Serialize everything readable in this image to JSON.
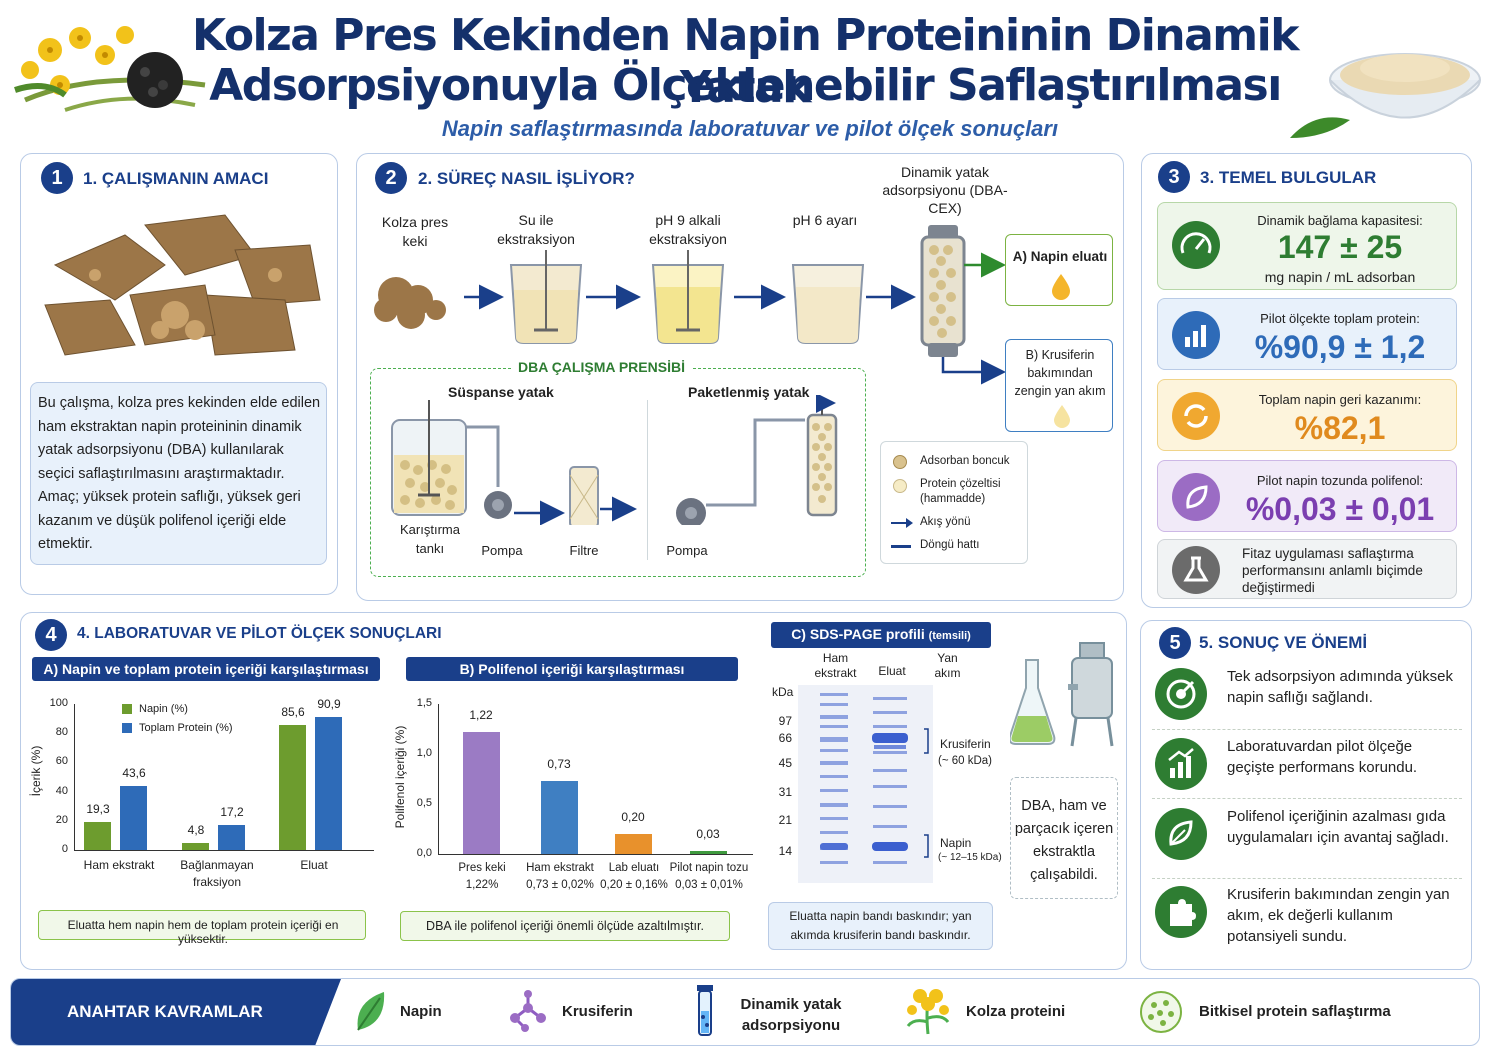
{
  "header": {
    "title_line1": "Kolza Pres Kekinden Napin Proteininin Dinamik Yatak",
    "title_line2": "Adsorpsiyonuyla Ölçeklenebilir Saflaştırılması",
    "subtitle": "Napin saflaştırmasında laboratuvar ve pilot ölçek sonuçları"
  },
  "s1": {
    "num": "1",
    "title": "1. ÇALIŞMANIN AMACI",
    "body": "Bu çalışma, kolza pres kekinden elde edilen ham ekstraktan napin proteininin dinamik yatak adsorpsiyonu (DBA) kullanılarak seçici saflaştırılmasını araştırmaktadır. Amaç; yüksek protein saflığı, yüksek geri kazanım ve düşük polifenol içeriği elde etmektir."
  },
  "s2": {
    "num": "2",
    "title": "2. SÜREÇ NASIL İŞLİYOR?",
    "steps": [
      "Kolza pres keki",
      "Su ile ekstraksiyon",
      "pH 9 alkali ekstraksiyon",
      "pH 6 ayarı"
    ],
    "column_label": "Dinamik yatak adsorpsiyonu (DBA-CEX)",
    "out_a": "A) Napin eluatı",
    "out_b": "B) Krusiferin bakımından zengin yan akım",
    "principle_title": "DBA ÇALIŞMA PRENSİBİ",
    "suspended": "Süspanse yatak",
    "packed": "Paketlenmiş yatak",
    "tank": "Karıştırma tankı",
    "pump1": "Pompa",
    "filter": "Filtre",
    "pump2": "Pompa",
    "legend": [
      "Adsorban boncuk",
      "Protein çözeltisi (hammadde)",
      "Akış yönü",
      "Döngü hattı"
    ]
  },
  "s3": {
    "num": "3",
    "title": "3. TEMEL BULGULAR",
    "f1_top": "Dinamik bağlama kapasitesi:",
    "f1_big": "147 ± 25",
    "f1_unit": "mg napin / mL adsorban",
    "f2_top": "Pilot ölçekte toplam protein:",
    "f2_big": "%90,9 ± 1,2",
    "f3_top": "Toplam napin geri kazanımı:",
    "f3_big": "%82,1",
    "f4_top": "Pilot napin tozunda polifenol:",
    "f4_big": "%0,03 ± 0,01",
    "f5_text": "Fitaz uygulaması saflaştırma performansını anlamlı biçimde değiştirmedi"
  },
  "s4": {
    "num": "4",
    "title": "4. LABORATUVAR VE PİLOT ÖLÇEK SONUÇLARI",
    "a_title": "A) Napin ve toplam protein içeriği karşılaştırması",
    "a_note": "Eluatta hem napin hem de toplam protein içeriği en yüksektir.",
    "b_title": "B) Polifenol içeriği karşılaştırması",
    "b_note": "DBA ile polifenol içeriği önemli ölçüde azaltılmıştır.",
    "c_title": "C) SDS-PAGE profili",
    "c_title_small": "(temsili)",
    "c_cols": [
      "Ham ekstrakt",
      "Eluat",
      "Yan akım"
    ],
    "c_kda": "kDa",
    "c_markers": [
      "97",
      "66",
      "45",
      "31",
      "21",
      "14"
    ],
    "c_band1": "Krusiferin",
    "c_band1_sub": "(~ 60 kDa)",
    "c_band2": "Napin",
    "c_band2_sub": "(~ 12–15 kDa)",
    "c_note": "Eluatta napin bandı baskındır; yan akımda krusiferin bandı baskındır.",
    "side_note": "DBA, ham ve parçacık içeren ekstraktla çalışabildi."
  },
  "s5": {
    "num": "5",
    "title": "5. SONUÇ VE ÖNEMİ",
    "items": [
      "Tek adsorpsiyon adımında yüksek napin saflığı sağlandı.",
      "Laboratuvardan pilot ölçeğe geçişte performans korundu.",
      "Polifenol içeriğinin azalması gıda uygulamaları için avantaj sağladı.",
      "Krusiferin bakımından zengin yan akım, ek değerli kullanım potansiyeli sundu."
    ]
  },
  "footer": {
    "label": "ANAHTAR KAVRAMLAR",
    "items": [
      "Napin",
      "Krusiferin",
      "Dinamik yatak adsorpsiyonu",
      "Kolza proteini",
      "Bitkisel protein saflaştırma"
    ]
  },
  "chart_data": [
    {
      "type": "bar",
      "categories": [
        "Ham ekstrakt",
        "Bağlanmayan fraksiyon",
        "Eluat"
      ],
      "series": [
        {
          "name": "Napin (%)",
          "values": [
            19.3,
            4.8,
            85.6
          ],
          "labels": [
            "19,3",
            "4,8",
            "85,6"
          ]
        },
        {
          "name": "Toplam Protein (%)",
          "values": [
            43.6,
            17.2,
            90.9
          ],
          "labels": [
            "43,6",
            "17,2",
            "90,9"
          ]
        }
      ],
      "ylabel": "İçerik (%)",
      "ylim": [
        0,
        100
      ],
      "yticks": [
        "0",
        "20",
        "40",
        "60",
        "80",
        "100"
      ],
      "colors": [
        "#6d9c2e",
        "#2e6bb8"
      ]
    },
    {
      "type": "bar",
      "categories": [
        "Pres keki",
        "Ham ekstrakt",
        "Lab eluatı",
        "Pilot napin tozu"
      ],
      "sublabels": [
        "1,22%",
        "0,73 ± 0,02%",
        "0,20 ± 0,16%",
        "0,03 ± 0,01%"
      ],
      "values": [
        1.22,
        0.73,
        0.2,
        0.03
      ],
      "labels": [
        "1,22",
        "0,73",
        "0,20",
        "0,03"
      ],
      "ylabel": "Polifenol içeriği (%)",
      "ylim": [
        0,
        1.5
      ],
      "yticks": [
        "0,0",
        "0,5",
        "1,0",
        "1,5"
      ],
      "colors": [
        "#9b7bc4",
        "#3f7fc2",
        "#e8912c",
        "#3e9a3e"
      ]
    }
  ]
}
